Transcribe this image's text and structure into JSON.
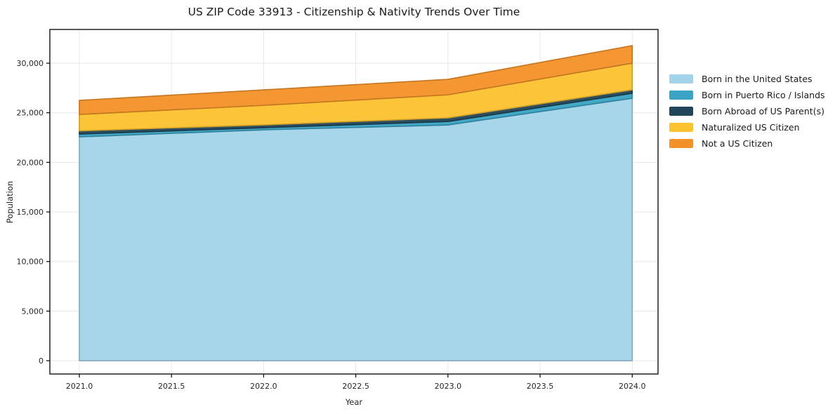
{
  "title": "US ZIP Code 33913 - Citizenship & Nativity Trends Over Time",
  "chart_data": {
    "type": "area",
    "stacked": true,
    "title": "US ZIP Code 33913 - Citizenship & Nativity Trends Over Time",
    "xlabel": "Year",
    "ylabel": "Population",
    "x": [
      2021,
      2022,
      2023,
      2024
    ],
    "x_ticks": [
      2021.0,
      2021.5,
      2022.0,
      2022.5,
      2023.0,
      2023.5,
      2024.0
    ],
    "x_tick_labels": [
      "2021.0",
      "2021.5",
      "2022.0",
      "2022.5",
      "2023.0",
      "2023.5",
      "2024.0"
    ],
    "y_ticks": [
      0,
      5000,
      10000,
      15000,
      20000,
      25000,
      30000
    ],
    "y_tick_labels": [
      "0",
      "5,000",
      "10,000",
      "15,000",
      "20,000",
      "25,000",
      "30,000"
    ],
    "xlim": [
      2020.84,
      2024.14
    ],
    "ylim": [
      -1342,
      33400
    ],
    "grid": true,
    "legend_position": "right of plot",
    "series": [
      {
        "name": "Born in the United States",
        "color": "#a3d3e8",
        "values": [
          22570,
          23280,
          23770,
          26460
        ]
      },
      {
        "name": "Born in Puerto Rico / Islands",
        "color": "#3ba3c4",
        "values": [
          280,
          210,
          350,
          500
        ]
      },
      {
        "name": "Born Abroad of US Parent(s)",
        "color": "#21465a",
        "values": [
          320,
          280,
          360,
          350
        ]
      },
      {
        "name": "Naturalized US Citizen",
        "color": "#fcc230",
        "values": [
          1660,
          1980,
          2330,
          2690
        ]
      },
      {
        "name": "Not a US Citizen",
        "color": "#f4922a",
        "values": [
          1420,
          1560,
          1560,
          1770
        ]
      }
    ],
    "totals": [
      26250,
      27310,
      28370,
      31770
    ],
    "axis_color": "#000000",
    "grid_color": "#e8e8e8",
    "tick_label_color": "#262626"
  }
}
